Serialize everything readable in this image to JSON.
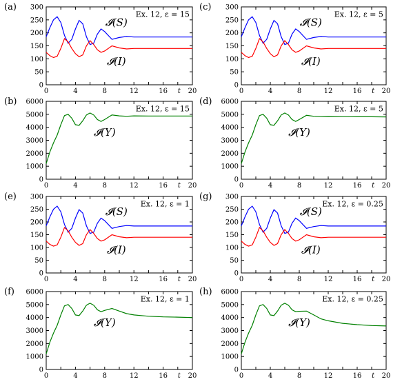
{
  "chart_data": [
    {
      "panel": "(a)",
      "type": "line",
      "annotation": "Ex. 12, ε = 15",
      "xlim": [
        0,
        20
      ],
      "ylim": [
        0,
        300
      ],
      "xticks": [
        "0",
        "4",
        "8",
        "12",
        "16",
        "t",
        "20"
      ],
      "yticks": [
        "0",
        "50",
        "100",
        "150",
        "200",
        "250",
        "300"
      ],
      "grid": false,
      "series": [
        {
          "name": "𝓘(S)",
          "color": "#0000ff",
          "x": [
            0,
            0.5,
            1,
            1.5,
            2,
            2.5,
            3,
            3.5,
            4,
            4.5,
            5,
            5.5,
            6,
            6.5,
            7,
            7.5,
            8,
            9,
            10,
            11,
            12,
            14,
            16,
            18,
            20
          ],
          "y": [
            185,
            220,
            250,
            262,
            240,
            190,
            160,
            175,
            215,
            248,
            235,
            185,
            155,
            160,
            195,
            215,
            205,
            175,
            182,
            186,
            184,
            184,
            184,
            184,
            184
          ]
        },
        {
          "name": "𝓘(I)",
          "color": "#ff0000",
          "x": [
            0,
            0.5,
            1,
            1.5,
            2,
            2.5,
            3,
            3.5,
            4,
            4.5,
            5,
            5.5,
            6,
            6.5,
            7,
            7.5,
            8,
            9,
            10,
            11,
            12,
            14,
            16,
            18,
            20
          ],
          "y": [
            125,
            112,
            105,
            110,
            140,
            178,
            165,
            140,
            120,
            108,
            115,
            150,
            170,
            155,
            135,
            125,
            130,
            150,
            142,
            138,
            140,
            140,
            140,
            140,
            140
          ]
        }
      ]
    },
    {
      "panel": "(c)",
      "type": "line",
      "annotation": "Ex. 12, ε = 5",
      "xlim": [
        0,
        20
      ],
      "ylim": [
        0,
        300
      ],
      "xticks": [
        "0",
        "4",
        "8",
        "12",
        "16",
        "t",
        "20"
      ],
      "yticks": [
        "0",
        "50",
        "100",
        "150",
        "200",
        "250",
        "300"
      ],
      "grid": false,
      "series": [
        {
          "name": "𝓘(S)",
          "color": "#0000ff",
          "x": [
            0,
            0.5,
            1,
            1.5,
            2,
            2.5,
            3,
            3.5,
            4,
            4.5,
            5,
            5.5,
            6,
            6.5,
            7,
            7.5,
            8,
            9,
            10,
            11,
            12,
            14,
            16,
            18,
            20
          ],
          "y": [
            185,
            220,
            250,
            262,
            240,
            190,
            160,
            175,
            215,
            248,
            235,
            185,
            155,
            160,
            195,
            215,
            205,
            175,
            182,
            186,
            184,
            184,
            184,
            184,
            184
          ]
        },
        {
          "name": "𝓘(I)",
          "color": "#ff0000",
          "x": [
            0,
            0.5,
            1,
            1.5,
            2,
            2.5,
            3,
            3.5,
            4,
            4.5,
            5,
            5.5,
            6,
            6.5,
            7,
            7.5,
            8,
            9,
            10,
            11,
            12,
            14,
            16,
            18,
            20
          ],
          "y": [
            125,
            112,
            105,
            110,
            140,
            178,
            165,
            140,
            120,
            108,
            115,
            150,
            170,
            155,
            135,
            125,
            130,
            150,
            142,
            138,
            140,
            140,
            140,
            140,
            140
          ]
        }
      ]
    },
    {
      "panel": "(b)",
      "type": "line",
      "annotation": "Ex. 12, ε = 15",
      "xlim": [
        0,
        20
      ],
      "ylim": [
        0,
        6000
      ],
      "xticks": [
        "0",
        "4",
        "8",
        "12",
        "16",
        "t",
        "20"
      ],
      "yticks": [
        "0",
        "1000",
        "2000",
        "3000",
        "4000",
        "5000",
        "6000"
      ],
      "grid": false,
      "series": [
        {
          "name": "𝓘(Y)",
          "color": "#008000",
          "x": [
            0,
            0.5,
            1,
            1.5,
            2,
            2.5,
            3,
            3.5,
            4,
            4.5,
            5,
            5.5,
            6,
            6.5,
            7,
            7.5,
            8,
            9,
            10,
            11,
            12,
            14,
            16,
            18,
            20
          ],
          "y": [
            1200,
            2100,
            2800,
            3400,
            4200,
            4900,
            5000,
            4700,
            4200,
            4150,
            4500,
            4950,
            5100,
            4950,
            4600,
            4450,
            4600,
            4950,
            4880,
            4850,
            4880,
            4870,
            4870,
            4870,
            4870
          ]
        }
      ]
    },
    {
      "panel": "(d)",
      "type": "line",
      "annotation": "Ex. 12, ε = 5",
      "xlim": [
        0,
        20
      ],
      "ylim": [
        0,
        6000
      ],
      "xticks": [
        "0",
        "4",
        "8",
        "12",
        "16",
        "t",
        "20"
      ],
      "yticks": [
        "0",
        "1000",
        "2000",
        "3000",
        "4000",
        "5000",
        "6000"
      ],
      "grid": false,
      "series": [
        {
          "name": "𝓘(Y)",
          "color": "#008000",
          "x": [
            0,
            0.5,
            1,
            1.5,
            2,
            2.5,
            3,
            3.5,
            4,
            4.5,
            5,
            5.5,
            6,
            6.5,
            7,
            7.5,
            8,
            9,
            10,
            11,
            12,
            14,
            16,
            18,
            20
          ],
          "y": [
            1200,
            2100,
            2800,
            3400,
            4200,
            4900,
            5000,
            4700,
            4200,
            4150,
            4500,
            4950,
            5100,
            4950,
            4600,
            4450,
            4600,
            4920,
            4850,
            4820,
            4830,
            4820,
            4810,
            4810,
            4800
          ]
        }
      ]
    },
    {
      "panel": "(e)",
      "type": "line",
      "annotation": "Ex. 12, ε = 1",
      "xlim": [
        0,
        20
      ],
      "ylim": [
        0,
        300
      ],
      "xticks": [
        "0",
        "4",
        "8",
        "12",
        "16",
        "t",
        "20"
      ],
      "yticks": [
        "0",
        "50",
        "100",
        "150",
        "200",
        "250",
        "300"
      ],
      "grid": false,
      "series": [
        {
          "name": "𝓘(S)",
          "color": "#0000ff",
          "x": [
            0,
            0.5,
            1,
            1.5,
            2,
            2.5,
            3,
            3.5,
            4,
            4.5,
            5,
            5.5,
            6,
            6.5,
            7,
            7.5,
            8,
            9,
            10,
            11,
            12,
            14,
            16,
            18,
            20
          ],
          "y": [
            185,
            220,
            250,
            262,
            240,
            190,
            160,
            175,
            215,
            248,
            235,
            185,
            155,
            160,
            195,
            215,
            205,
            175,
            182,
            186,
            184,
            184,
            184,
            184,
            184
          ]
        },
        {
          "name": "𝓘(I)",
          "color": "#ff0000",
          "x": [
            0,
            0.5,
            1,
            1.5,
            2,
            2.5,
            3,
            3.5,
            4,
            4.5,
            5,
            5.5,
            6,
            6.5,
            7,
            7.5,
            8,
            9,
            10,
            11,
            12,
            14,
            16,
            18,
            20
          ],
          "y": [
            125,
            112,
            105,
            110,
            140,
            178,
            165,
            140,
            120,
            108,
            115,
            150,
            170,
            155,
            135,
            125,
            130,
            150,
            142,
            138,
            140,
            140,
            140,
            140,
            140
          ]
        }
      ]
    },
    {
      "panel": "(g)",
      "type": "line",
      "annotation": "Ex. 12, ε = 0.25",
      "xlim": [
        0,
        20
      ],
      "ylim": [
        0,
        300
      ],
      "xticks": [
        "0",
        "4",
        "8",
        "12",
        "16",
        "t",
        "20"
      ],
      "yticks": [
        "0",
        "50",
        "100",
        "150",
        "200",
        "250",
        "300"
      ],
      "grid": false,
      "series": [
        {
          "name": "𝓘(S)",
          "color": "#0000ff",
          "x": [
            0,
            0.5,
            1,
            1.5,
            2,
            2.5,
            3,
            3.5,
            4,
            4.5,
            5,
            5.5,
            6,
            6.5,
            7,
            7.5,
            8,
            9,
            10,
            11,
            12,
            14,
            16,
            18,
            20
          ],
          "y": [
            185,
            220,
            250,
            262,
            240,
            190,
            160,
            175,
            215,
            248,
            235,
            185,
            155,
            160,
            195,
            215,
            205,
            175,
            182,
            186,
            184,
            184,
            184,
            184,
            184
          ]
        },
        {
          "name": "𝓘(I)",
          "color": "#ff0000",
          "x": [
            0,
            0.5,
            1,
            1.5,
            2,
            2.5,
            3,
            3.5,
            4,
            4.5,
            5,
            5.5,
            6,
            6.5,
            7,
            7.5,
            8,
            9,
            10,
            11,
            12,
            14,
            16,
            18,
            20
          ],
          "y": [
            125,
            112,
            105,
            110,
            140,
            178,
            165,
            140,
            120,
            108,
            115,
            150,
            170,
            155,
            135,
            125,
            130,
            150,
            142,
            138,
            140,
            140,
            140,
            140,
            140
          ]
        }
      ]
    },
    {
      "panel": "(f)",
      "type": "line",
      "annotation": "Ex. 12, ε = 1",
      "xlim": [
        0,
        20
      ],
      "ylim": [
        0,
        6000
      ],
      "xticks": [
        "0",
        "4",
        "8",
        "12",
        "16",
        "t",
        "20"
      ],
      "yticks": [
        "0",
        "1000",
        "2000",
        "3000",
        "4000",
        "5000",
        "6000"
      ],
      "grid": false,
      "series": [
        {
          "name": "𝓘(Y)",
          "color": "#008000",
          "x": [
            0,
            0.5,
            1,
            1.5,
            2,
            2.5,
            3,
            3.5,
            4,
            4.5,
            5,
            5.5,
            6,
            6.5,
            7,
            7.5,
            8,
            9,
            10,
            11,
            12,
            14,
            16,
            18,
            20
          ],
          "y": [
            1200,
            2100,
            2800,
            3400,
            4200,
            4900,
            5000,
            4700,
            4200,
            4150,
            4500,
            4950,
            5100,
            4950,
            4600,
            4450,
            4550,
            4700,
            4500,
            4300,
            4200,
            4100,
            4050,
            4030,
            4000
          ]
        }
      ]
    },
    {
      "panel": "(h)",
      "type": "line",
      "annotation": "Ex. 12, ε = 0.25",
      "xlim": [
        0,
        20
      ],
      "ylim": [
        0,
        6000
      ],
      "xticks": [
        "0",
        "4",
        "8",
        "12",
        "16",
        "t",
        "20"
      ],
      "yticks": [
        "0",
        "1000",
        "2000",
        "3000",
        "4000",
        "5000",
        "6000"
      ],
      "grid": false,
      "series": [
        {
          "name": "𝓘(Y)",
          "color": "#008000",
          "x": [
            0,
            0.5,
            1,
            1.5,
            2,
            2.5,
            3,
            3.5,
            4,
            4.5,
            5,
            5.5,
            6,
            6.5,
            7,
            7.5,
            8,
            9,
            10,
            11,
            12,
            14,
            16,
            18,
            20
          ],
          "y": [
            1200,
            2100,
            2800,
            3400,
            4200,
            4900,
            5000,
            4700,
            4200,
            4150,
            4500,
            4950,
            5100,
            4950,
            4600,
            4450,
            4480,
            4500,
            4200,
            3900,
            3750,
            3550,
            3450,
            3380,
            3350
          ]
        }
      ]
    }
  ]
}
